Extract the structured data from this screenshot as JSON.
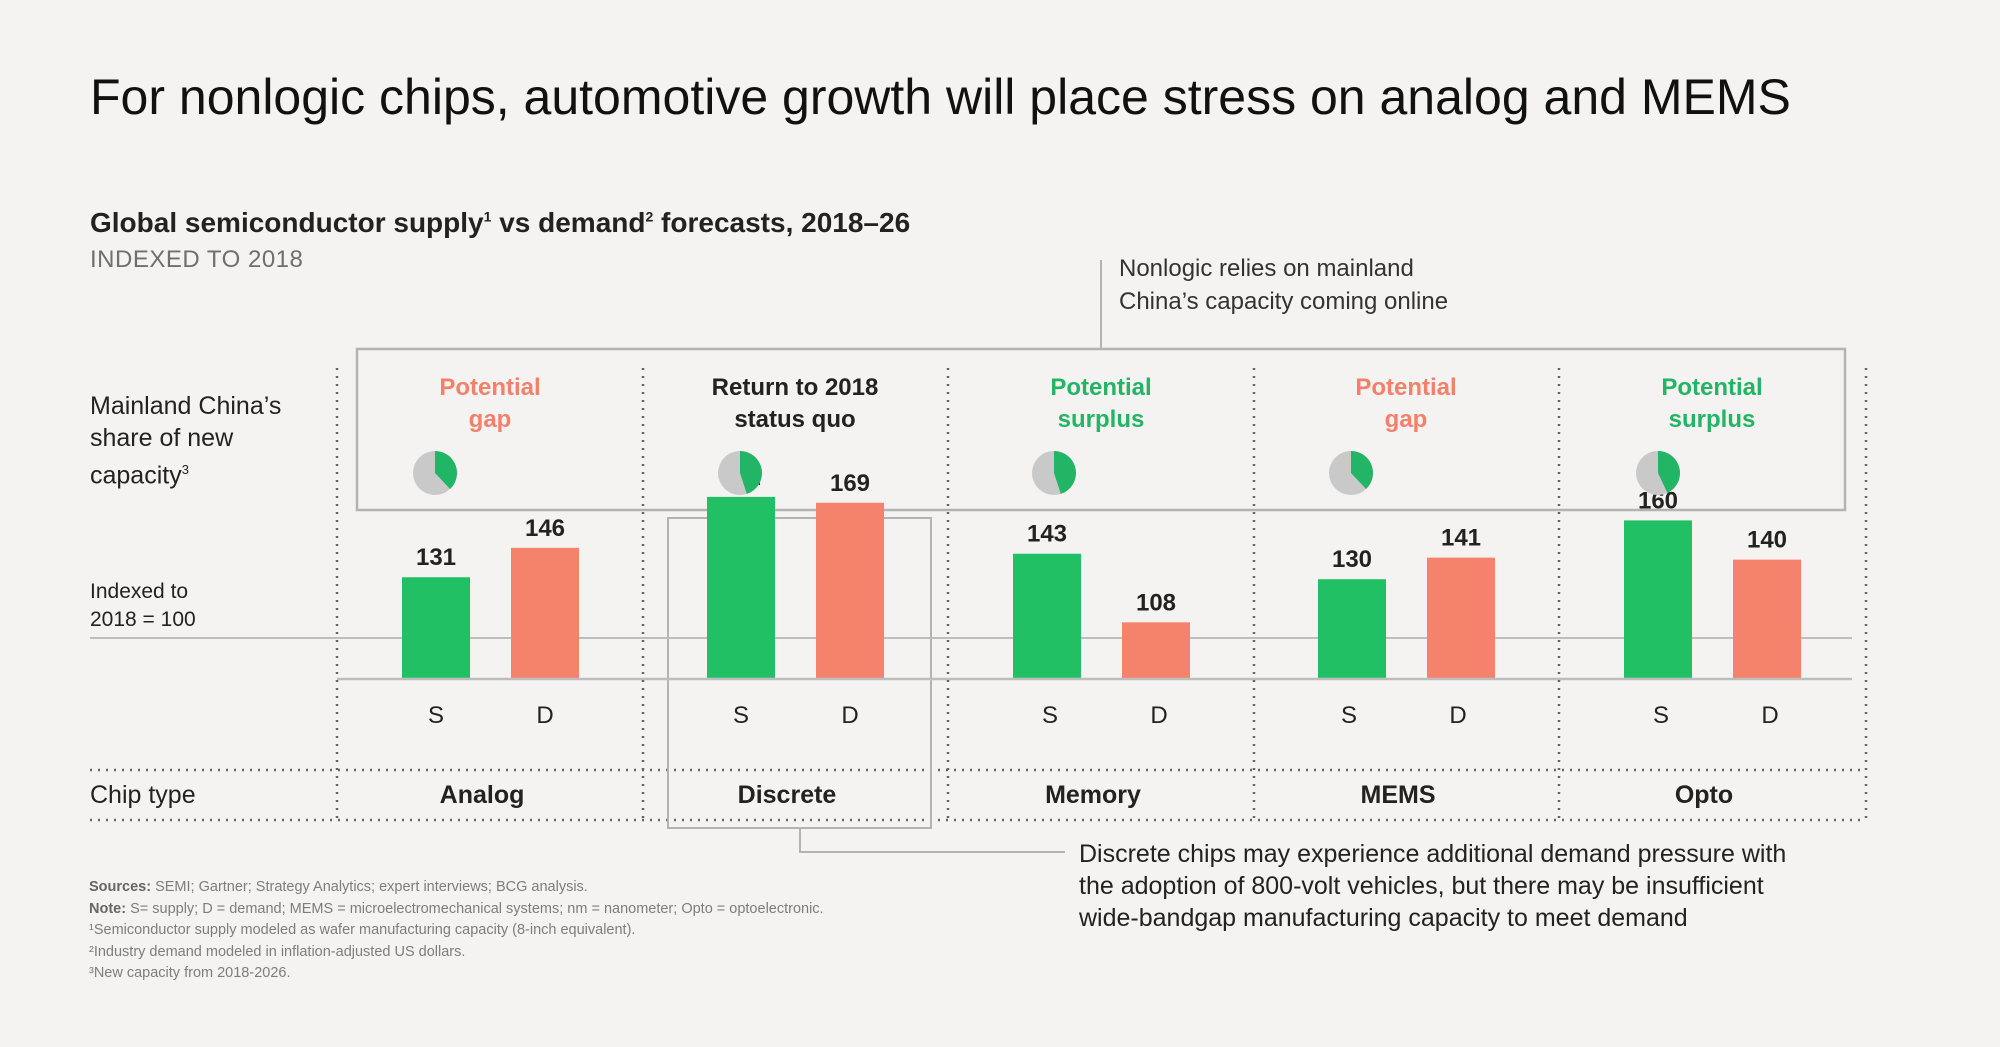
{
  "title": "For nonlogic chips, automotive growth will place stress on analog and MEMS",
  "subtitle": {
    "part1": "Global semiconductor supply",
    "sup1": "1",
    "part2": " vs demand",
    "sup2": "2",
    "part3": " forecasts, 2018–26"
  },
  "indexed_note": "INDEXED TO 2018",
  "row_labels": {
    "share_line1": "Mainland China’s",
    "share_line2": "share of new",
    "share_line3": "capacity",
    "share_sup": "3",
    "axis_line1": "Indexed to",
    "axis_line2": "2018 = 100",
    "chip_type": "Chip type"
  },
  "callouts": {
    "top_line1": "Nonlogic relies on mainland",
    "top_line2": "China’s capacity coming online",
    "bottom_line1": "Discrete chips may experience additional demand pressure with",
    "bottom_line2": "the adoption of 800-volt vehicles, but there may be insufficient",
    "bottom_line3": "wide-bandgap manufacturing capacity to meet demand"
  },
  "colors": {
    "supply": "#22c065",
    "demand": "#f5836b",
    "pie_share": "#22b565",
    "pie_rest": "#c9c9c9",
    "gap_text": "#f3806a",
    "surplus_text": "#22b565"
  },
  "chart_data": {
    "type": "bar",
    "categories": [
      "Analog",
      "Discrete",
      "Memory",
      "MEMS",
      "Opto"
    ],
    "series": [
      {
        "name": "S",
        "values": [
          131,
          172,
          143,
          130,
          160
        ]
      },
      {
        "name": "D",
        "values": [
          146,
          169,
          108,
          141,
          140
        ]
      }
    ],
    "status": [
      {
        "line1": "Potential",
        "line2": "gap",
        "kind": "gap"
      },
      {
        "line1": "Return to 2018",
        "line2": "status quo",
        "kind": "quo"
      },
      {
        "line1": "Potential",
        "line2": "surplus",
        "kind": "surplus"
      },
      {
        "line1": "Potential",
        "line2": "gap",
        "kind": "gap"
      },
      {
        "line1": "Potential",
        "line2": "surplus",
        "kind": "surplus"
      }
    ],
    "china_share_pct": [
      38,
      45,
      45,
      38,
      43
    ],
    "reference_value": 100,
    "ylim": [
      0,
      180
    ],
    "grid": false
  },
  "footnotes": {
    "sources_label": "Sources:",
    "sources_text": " SEMI; Gartner; Strategy Analytics; expert interviews; BCG analysis.",
    "note_label": "Note:",
    "note_text": " S= supply; D = demand; MEMS = microelectromechanical systems; nm = nanometer; Opto = optoelectronic.",
    "fn1": "¹Semiconductor supply modeled as wafer manufacturing capacity (8-inch equivalent).",
    "fn2": "²Industry demand modeled in inflation-adjusted US dollars.",
    "fn3": "³New capacity from 2018-2026."
  }
}
